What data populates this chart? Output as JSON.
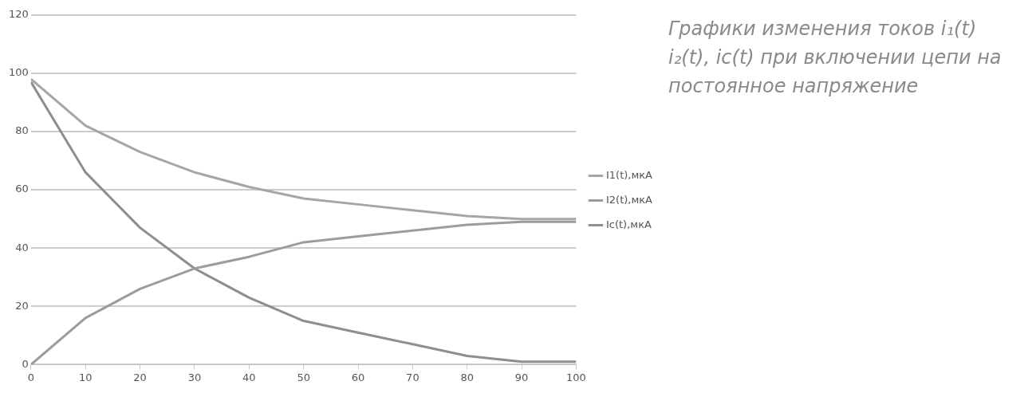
{
  "chart_data": {
    "type": "line",
    "x": [
      0,
      10,
      20,
      30,
      40,
      50,
      60,
      70,
      80,
      90,
      100
    ],
    "series": [
      {
        "name": "I1(t),мкА",
        "color": "#a6a6a6",
        "values": [
          98,
          82,
          73,
          66,
          61,
          57,
          55,
          53,
          51,
          50,
          50
        ]
      },
      {
        "name": "I2(t),мкА",
        "color": "#9c9c9c",
        "values": [
          0,
          16,
          26,
          33,
          37,
          42,
          44,
          46,
          48,
          49,
          49
        ]
      },
      {
        "name": "Ic(t),мкА",
        "color": "#8e8e8e",
        "values": [
          97,
          66,
          47,
          33,
          23,
          15,
          11,
          7,
          3,
          1,
          1
        ]
      }
    ],
    "xlim": [
      0,
      100
    ],
    "xticks": [
      0,
      10,
      20,
      30,
      40,
      50,
      60,
      70,
      80,
      90,
      100
    ],
    "ylim": [
      0,
      120
    ],
    "yticks": [
      0,
      20,
      40,
      60,
      80,
      100,
      120
    ],
    "grid": "y",
    "legend": "right",
    "marker": "none",
    "line_style": "solid",
    "annotations": [
      "Графики изменения токов i₁(t) i₂(t), iс(t) при включении цепи на постоянное напряжение"
    ]
  }
}
